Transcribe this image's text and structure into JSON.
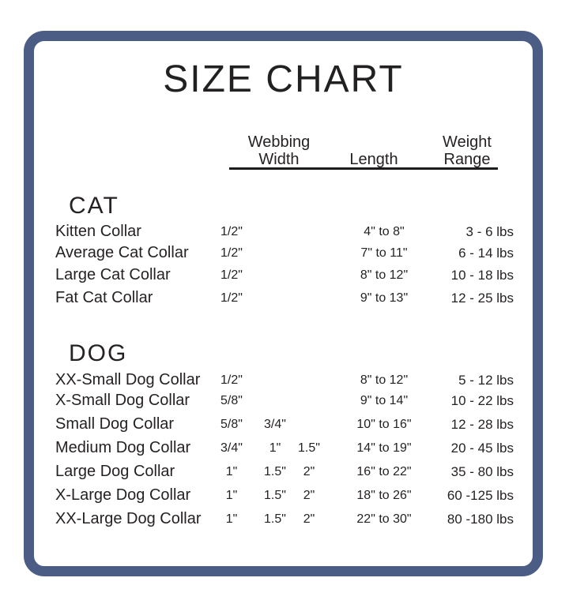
{
  "title": "SIZE CHART",
  "columns": {
    "webbing": [
      "Webbing",
      "Width"
    ],
    "length": "Length",
    "weight": [
      "Weight",
      "Range"
    ]
  },
  "sections": [
    {
      "name": "CAT",
      "rows": [
        {
          "label": "Kitten Collar",
          "webbing": [
            "1/2\""
          ],
          "length": "4\" to 8\"",
          "weight": "3 - 6 lbs"
        },
        {
          "label": "Average Cat Collar",
          "webbing": [
            "1/2\""
          ],
          "length": "7\" to 11\"",
          "weight": "6 - 14 lbs"
        },
        {
          "label": "Large Cat Collar",
          "webbing": [
            "1/2\""
          ],
          "length": "8\" to 12\"",
          "weight": "10 - 18 lbs"
        },
        {
          "label": "Fat Cat Collar",
          "webbing": [
            "1/2\""
          ],
          "length": "9\" to 13\"",
          "weight": "12 - 25 lbs"
        }
      ]
    },
    {
      "name": "DOG",
      "rows": [
        {
          "label": "XX-Small Dog Collar",
          "webbing": [
            "1/2\""
          ],
          "length": "8\" to 12\"",
          "weight": "5 - 12 lbs"
        },
        {
          "label": "X-Small Dog Collar",
          "webbing": [
            "5/8\""
          ],
          "length": "9\" to 14\"",
          "weight": "10 - 22 lbs"
        },
        {
          "label": "Small Dog Collar",
          "webbing": [
            "5/8\"",
            "3/4\""
          ],
          "length": "10\" to 16\"",
          "weight": "12 - 28 lbs"
        },
        {
          "label": "Medium Dog Collar",
          "webbing": [
            "3/4\"",
            "1\"",
            "1.5\""
          ],
          "length": "14\" to 19\"",
          "weight": "20 - 45 lbs"
        },
        {
          "label": "Large Dog Collar",
          "webbing": [
            "1\"",
            "1.5\"",
            "2\""
          ],
          "length": "16\" to 22\"",
          "weight": "35 - 80 lbs"
        },
        {
          "label": "X-Large Dog Collar",
          "webbing": [
            "1\"",
            "1.5\"",
            "2\""
          ],
          "length": "18\" to 26\"",
          "weight": "60 -125 lbs"
        },
        {
          "label": "XX-Large Dog Collar",
          "webbing": [
            "1\"",
            "1.5\"",
            "2\""
          ],
          "length": "22\" to 30\"",
          "weight": "80 -180 lbs"
        }
      ]
    }
  ],
  "colors": {
    "border": "#4b5d85",
    "text": "#262224",
    "underline": "#1d1b1c",
    "background": "#ffffff"
  }
}
